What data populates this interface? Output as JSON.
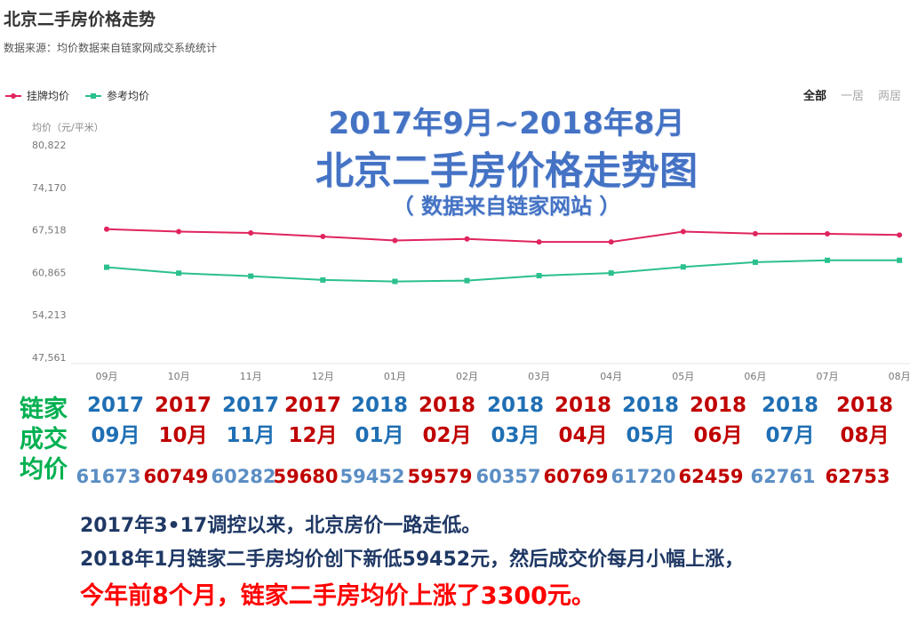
{
  "page": {
    "title": "北京二手房价格走势",
    "subtitle": "数据来源：均价数据来自链家网成交系统统计"
  },
  "tabs": [
    "全部",
    "一居",
    "两居"
  ],
  "overlay": {
    "line1": "2017年9月~2018年8月",
    "line2": "北京二手房价格走势图",
    "line3": "（ 数据来自链家网站 ）"
  },
  "table": {
    "row_label_lines": [
      "链家",
      "成交",
      "均价"
    ],
    "years": [
      "2017",
      "2017",
      "2017",
      "2017",
      "2018",
      "2018",
      "2018",
      "2018",
      "2018",
      "2018",
      "2018",
      "2018"
    ],
    "months": [
      "09月",
      "10月",
      "11月",
      "12月",
      "01月",
      "02月",
      "03月",
      "04月",
      "05月",
      "06月",
      "07月",
      "08月"
    ],
    "values": [
      "61673",
      "60749",
      "60282",
      "59680",
      "59452",
      "59579",
      "60357",
      "60769",
      "61720",
      "62459",
      "62761",
      "62753"
    ]
  },
  "summary": {
    "line1": "2017年3•17调控以来，北京房价一路走低。",
    "line2": "2018年1月链家二手房均价创下新低59452元，然后成交价每月小幅上涨，",
    "line3": "今年前8个月，链家二手房均价上涨了3300元。"
  },
  "chart_data": {
    "type": "line",
    "ylabel": "均价（元/平米）",
    "ylim": [
      47561,
      80822
    ],
    "yticks": [
      "80,822",
      "74,170",
      "67,518",
      "60,865",
      "54,213",
      "47,561"
    ],
    "categories": [
      "09月",
      "10月",
      "11月",
      "12月",
      "01月",
      "02月",
      "03月",
      "04月",
      "05月",
      "06月",
      "07月",
      "08月"
    ],
    "series": [
      {
        "name": "挂牌均价",
        "color": "#e0245e",
        "values": [
          67640,
          67250,
          67050,
          66480,
          65860,
          66110,
          65640,
          65640,
          67260,
          66930,
          66900,
          66720
        ]
      },
      {
        "name": "参考均价",
        "color": "#2bc08e",
        "values": [
          61673,
          60749,
          60282,
          59680,
          59452,
          59579,
          60357,
          60769,
          61720,
          62459,
          62761,
          62753
        ]
      }
    ],
    "grid": false,
    "legend_position": "top-left"
  },
  "colors": {
    "overlay": "#4472c4",
    "lianjia_label": "#00b050",
    "blue": "#1f6fb4",
    "red": "#c00000",
    "summary": "#1f3864",
    "highlight": "#ff0000"
  }
}
